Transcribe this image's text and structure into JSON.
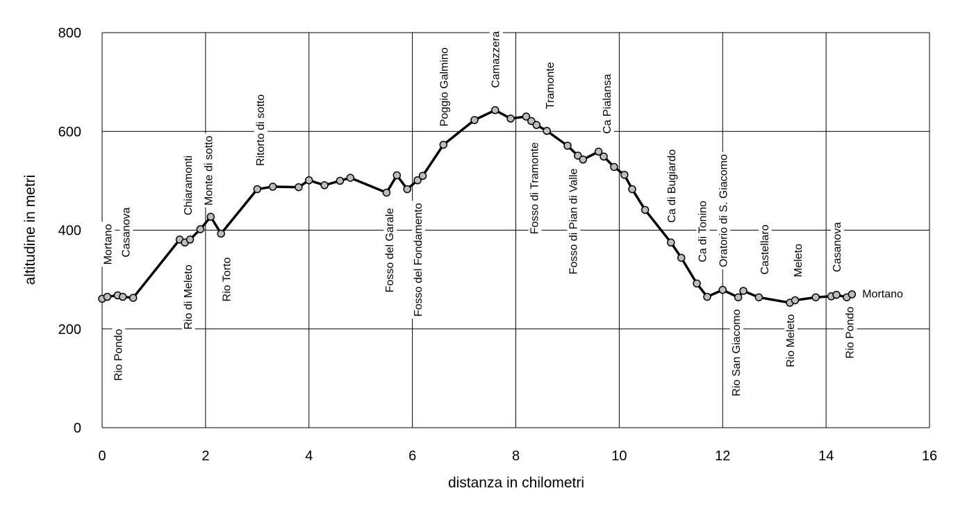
{
  "chart_data": {
    "type": "line",
    "title": "",
    "xlabel": "distanza in chilometri",
    "ylabel": "altitudine  in metri",
    "xlim": [
      0,
      16
    ],
    "ylim": [
      0,
      800
    ],
    "xticks": [
      "0",
      "2",
      "4",
      "6",
      "8",
      "10",
      "12",
      "14",
      "16"
    ],
    "yticks": [
      "0",
      "200",
      "400",
      "600",
      "800"
    ],
    "grid": true,
    "series": [
      {
        "x": [
          0,
          0.1,
          0.3,
          0.4,
          0.6,
          1.5,
          1.6,
          1.7,
          1.9,
          2.1,
          2.3,
          3.0,
          3.3,
          3.8,
          4.0,
          4.3,
          4.6,
          4.8,
          5.5,
          5.7,
          5.9,
          6.1,
          6.2,
          6.6,
          7.2,
          7.6,
          7.9,
          8.2,
          8.3,
          8.4,
          8.6,
          9.0,
          9.2,
          9.3,
          9.6,
          9.7,
          9.9,
          10.1,
          10.25,
          10.5,
          11.0,
          11.2,
          11.5,
          11.7,
          12.0,
          12.3,
          12.4,
          12.7,
          13.3,
          13.4,
          13.8,
          14.1,
          14.2,
          14.4,
          14.5
        ],
        "values": [
          261,
          265,
          268,
          265,
          263,
          381,
          375,
          381,
          402,
          427,
          393,
          483,
          488,
          487,
          501,
          491,
          500,
          506,
          476,
          511,
          483,
          501,
          510,
          573,
          623,
          643,
          626,
          630,
          621,
          613,
          601,
          571,
          551,
          543,
          559,
          549,
          528,
          512,
          483,
          441,
          375,
          344,
          292,
          265,
          279,
          264,
          277,
          264,
          253,
          258,
          264,
          266,
          269,
          264,
          270
        ]
      }
    ],
    "annotations": [
      {
        "text": "Mortano",
        "x": 0.1,
        "y": 330,
        "pos": "above"
      },
      {
        "text": "Casanova",
        "x": 0.45,
        "y": 345,
        "pos": "above"
      },
      {
        "text": "Rio Pondo",
        "x": 0.3,
        "y": 200,
        "pos": "below"
      },
      {
        "text": "Chiaramonti",
        "x": 1.65,
        "y": 430,
        "pos": "above"
      },
      {
        "text": "Monte di sotto",
        "x": 2.05,
        "y": 450,
        "pos": "above"
      },
      {
        "text": "Rio di Meleto",
        "x": 1.65,
        "y": 330,
        "pos": "below"
      },
      {
        "text": "Rio Torto",
        "x": 2.4,
        "y": 345,
        "pos": "below"
      },
      {
        "text": "Ritorto di sotto",
        "x": 3.05,
        "y": 530,
        "pos": "above"
      },
      {
        "text": "Fosso del Garale",
        "x": 5.55,
        "y": 445,
        "pos": "below"
      },
      {
        "text": "Fosso del Fondamento",
        "x": 6.1,
        "y": 455,
        "pos": "below"
      },
      {
        "text": "Poggio Galmino",
        "x": 6.6,
        "y": 610,
        "pos": "above"
      },
      {
        "text": "Camazzera",
        "x": 7.6,
        "y": 688,
        "pos": "above"
      },
      {
        "text": "Fosso di Tramonte",
        "x": 8.35,
        "y": 578,
        "pos": "below"
      },
      {
        "text": "Tramonte",
        "x": 8.65,
        "y": 645,
        "pos": "above"
      },
      {
        "text": "Fosso di Pian di Valle",
        "x": 9.1,
        "y": 525,
        "pos": "below"
      },
      {
        "text": "Ca Pialansa",
        "x": 9.75,
        "y": 595,
        "pos": "above"
      },
      {
        "text": "Ca di Bugiardo",
        "x": 11.0,
        "y": 415,
        "pos": "above"
      },
      {
        "text": "Ca di Tonino",
        "x": 11.6,
        "y": 335,
        "pos": "above"
      },
      {
        "text": "Oratorio di S. Giacomo",
        "x": 12.0,
        "y": 325,
        "pos": "above"
      },
      {
        "text": "Rio San Giacomo",
        "x": 12.25,
        "y": 240,
        "pos": "below"
      },
      {
        "text": "Castellaro",
        "x": 12.8,
        "y": 310,
        "pos": "above"
      },
      {
        "text": "Meleto",
        "x": 13.45,
        "y": 305,
        "pos": "above"
      },
      {
        "text": "Rio Meleto",
        "x": 13.3,
        "y": 230,
        "pos": "below"
      },
      {
        "text": "Casanova",
        "x": 14.2,
        "y": 315,
        "pos": "above"
      },
      {
        "text": "Rio Pondo",
        "x": 14.45,
        "y": 245,
        "pos": "below"
      },
      {
        "text": "Mortano",
        "x": 14.7,
        "y": 272,
        "pos": "right"
      }
    ]
  }
}
